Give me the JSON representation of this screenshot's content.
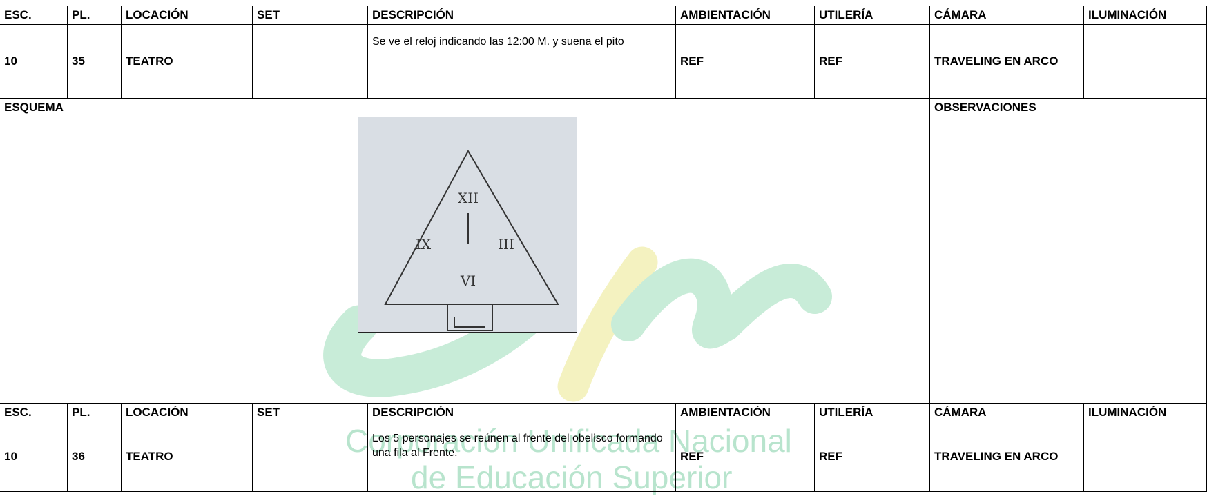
{
  "scenes": [
    {
      "headers": [
        "ESC.",
        "PL.",
        "LOCACIÓN",
        "SET",
        "DESCRIPCIÓN",
        "AMBIENTACIÓN",
        "UTILERÍA",
        "CÁMARA",
        "ILUMINACIÓN"
      ],
      "row": [
        "10",
        "35",
        "TEATRO",
        "",
        "Se ve el reloj indicando las 12:00 M. y suena el pito",
        "REF",
        "REF",
        "TRAVELING EN ARCO",
        ""
      ]
    },
    {
      "headers": [
        "ESC.",
        "PL.",
        "LOCACIÓN",
        "SET",
        "DESCRIPCIÓN",
        "AMBIENTACIÓN",
        "UTILERÍA",
        "CÁMARA",
        "ILUMINACIÓN"
      ],
      "row": [
        "10",
        "36",
        "TEATRO",
        "",
        "Los 5 personajes se reúnen al frente del obelisco formando una fila al Frente.",
        "REF",
        "REF",
        "TRAVELING EN ARCO",
        ""
      ]
    }
  ],
  "schema": {
    "label": "ESQUEMA",
    "sketch_labels": [
      "XII",
      "IX",
      "III",
      "VI"
    ]
  },
  "observations": {
    "label": "OBSERVACIONES"
  },
  "watermark": [
    "Corporación Unificada Nacional",
    "de Educación Superior"
  ]
}
